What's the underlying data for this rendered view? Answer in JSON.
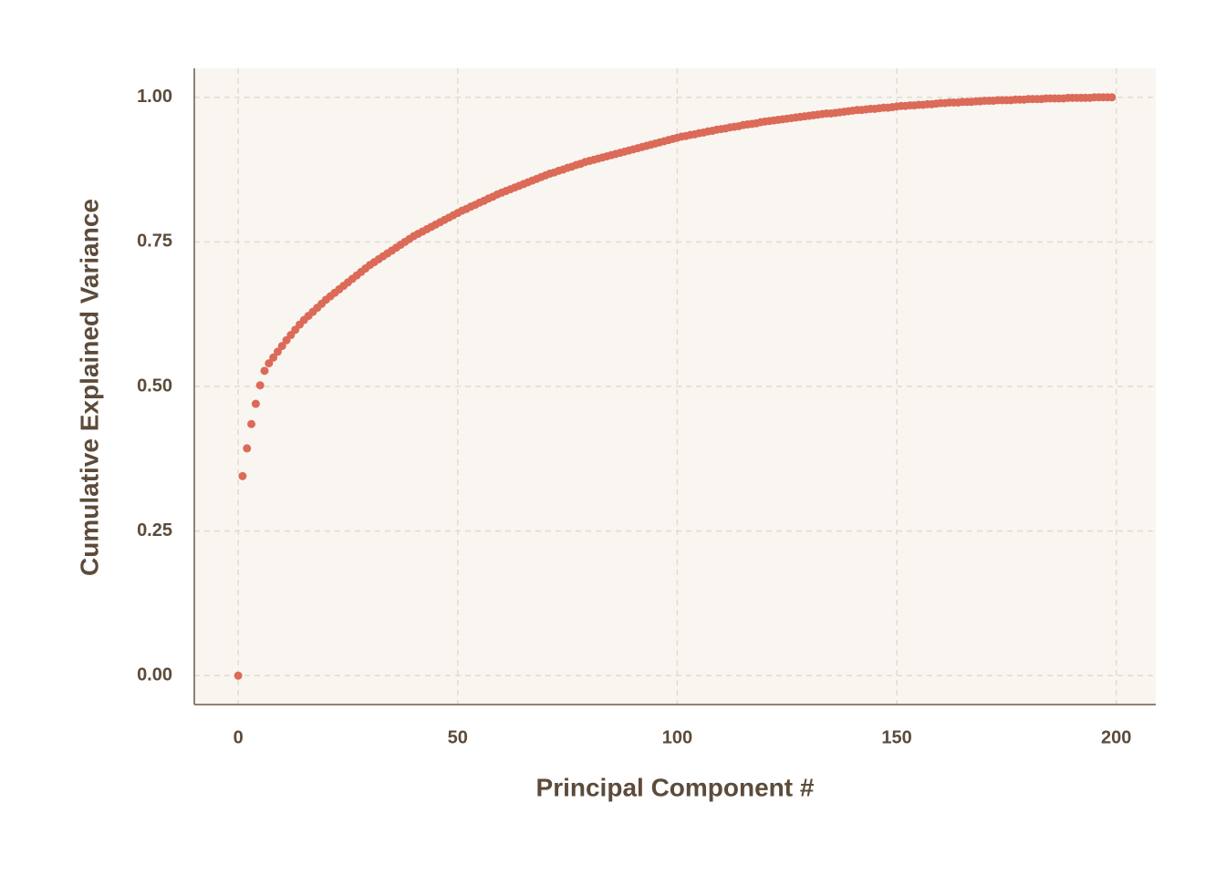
{
  "chart_data": {
    "type": "scatter",
    "x_label": "Principal Component #",
    "y_label": "Cumulative Explained Variance",
    "color": "#dc6a58",
    "grid": true,
    "xlim": [
      -10,
      209
    ],
    "ylim": [
      -0.05,
      1.05
    ],
    "xticks": [
      0,
      50,
      100,
      150,
      200
    ],
    "yticks": [
      {
        "value": 0,
        "label": "0.00"
      },
      {
        "value": 0.25,
        "label": "0.25"
      },
      {
        "value": 0.5,
        "label": "0.50"
      },
      {
        "value": 0.75,
        "label": "0.75"
      },
      {
        "value": 1,
        "label": "1.00"
      }
    ],
    "x": [
      0,
      1,
      2,
      3,
      4,
      5,
      6,
      7,
      8,
      9,
      10,
      11,
      12,
      13,
      14,
      15,
      16,
      17,
      18,
      19,
      20,
      21,
      22,
      23,
      24,
      25,
      26,
      27,
      28,
      29,
      30,
      31,
      32,
      33,
      34,
      35,
      36,
      37,
      38,
      39,
      40,
      41,
      42,
      43,
      44,
      45,
      46,
      47,
      48,
      49,
      50,
      51,
      52,
      53,
      54,
      55,
      56,
      57,
      58,
      59,
      60,
      61,
      62,
      63,
      64,
      65,
      66,
      67,
      68,
      69,
      70,
      71,
      72,
      73,
      74,
      75,
      76,
      77,
      78,
      79,
      80,
      81,
      82,
      83,
      84,
      85,
      86,
      87,
      88,
      89,
      90,
      91,
      92,
      93,
      94,
      95,
      96,
      97,
      98,
      99,
      100,
      101,
      102,
      103,
      104,
      105,
      106,
      107,
      108,
      109,
      110,
      111,
      112,
      113,
      114,
      115,
      116,
      117,
      118,
      119,
      120,
      121,
      122,
      123,
      124,
      125,
      126,
      127,
      128,
      129,
      130,
      131,
      132,
      133,
      134,
      135,
      136,
      137,
      138,
      139,
      140,
      141,
      142,
      143,
      144,
      145,
      146,
      147,
      148,
      149,
      150,
      151,
      152,
      153,
      154,
      155,
      156,
      157,
      158,
      159,
      160,
      161,
      162,
      163,
      164,
      165,
      166,
      167,
      168,
      169,
      170,
      171,
      172,
      173,
      174,
      175,
      176,
      177,
      178,
      179,
      180,
      181,
      182,
      183,
      184,
      185,
      186,
      187,
      188,
      189,
      190,
      191,
      192,
      193,
      194,
      195,
      196,
      197,
      198,
      199
    ],
    "values": [
      0,
      0.345,
      0.393,
      0.435,
      0.47,
      0.502,
      0.527,
      0.54,
      0.55,
      0.56,
      0.57,
      0.58,
      0.589,
      0.598,
      0.607,
      0.615,
      0.622,
      0.629,
      0.636,
      0.643,
      0.65,
      0.656,
      0.662,
      0.668,
      0.674,
      0.68,
      0.686,
      0.692,
      0.698,
      0.704,
      0.71,
      0.715,
      0.72,
      0.725,
      0.73,
      0.735,
      0.74,
      0.745,
      0.75,
      0.755,
      0.76,
      0.764,
      0.768,
      0.772,
      0.776,
      0.78,
      0.784,
      0.788,
      0.792,
      0.796,
      0.8,
      0.804,
      0.807,
      0.811,
      0.814,
      0.818,
      0.821,
      0.825,
      0.828,
      0.832,
      0.835,
      0.838,
      0.841,
      0.844,
      0.847,
      0.85,
      0.853,
      0.856,
      0.859,
      0.862,
      0.865,
      0.868,
      0.87,
      0.873,
      0.875,
      0.878,
      0.88,
      0.883,
      0.885,
      0.888,
      0.89,
      0.892,
      0.894,
      0.896,
      0.898,
      0.9,
      0.902,
      0.904,
      0.906,
      0.908,
      0.91,
      0.912,
      0.914,
      0.916,
      0.918,
      0.92,
      0.922,
      0.924,
      0.926,
      0.928,
      0.93,
      0.932,
      0.933,
      0.935,
      0.936,
      0.938,
      0.939,
      0.941,
      0.942,
      0.944,
      0.945,
      0.946,
      0.948,
      0.949,
      0.95,
      0.952,
      0.953,
      0.954,
      0.955,
      0.957,
      0.958,
      0.959,
      0.96,
      0.961,
      0.962,
      0.963,
      0.964,
      0.965,
      0.966,
      0.967,
      0.968,
      0.969,
      0.97,
      0.971,
      0.972,
      0.972,
      0.973,
      0.974,
      0.975,
      0.976,
      0.977,
      0.978,
      0.978,
      0.979,
      0.98,
      0.98,
      0.981,
      0.982,
      0.982,
      0.983,
      0.984,
      0.985,
      0.985,
      0.986,
      0.986,
      0.987,
      0.987,
      0.988,
      0.988,
      0.989,
      0.99,
      0.99,
      0.991,
      0.991,
      0.991,
      0.992,
      0.992,
      0.992,
      0.993,
      0.993,
      0.994,
      0.994,
      0.994,
      0.995,
      0.995,
      0.995,
      0.995,
      0.996,
      0.996,
      0.996,
      0.997,
      0.997,
      0.997,
      0.997,
      0.998,
      0.998,
      0.998,
      0.998,
      0.998,
      0.999,
      0.999,
      0.999,
      0.999,
      0.999,
      0.999,
      1.0,
      1.0,
      1.0,
      1.0,
      1.0
    ]
  }
}
